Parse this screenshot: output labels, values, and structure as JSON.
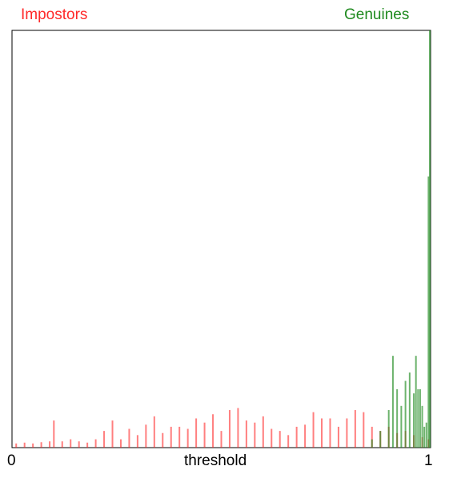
{
  "chart_data": {
    "type": "bar",
    "title": "",
    "xlabel": "threshold",
    "ylabel": "",
    "xlim": [
      0,
      1
    ],
    "ylim": [
      0,
      100
    ],
    "x_ticks": [
      "0",
      "1"
    ],
    "legend_placement": "top",
    "grid": false,
    "series": [
      {
        "name": "Impostors",
        "color": "#ff2a2a",
        "opacity": 0.6,
        "x": [
          0.01,
          0.03,
          0.05,
          0.07,
          0.09,
          0.1,
          0.12,
          0.14,
          0.16,
          0.18,
          0.2,
          0.22,
          0.24,
          0.26,
          0.28,
          0.3,
          0.32,
          0.34,
          0.36,
          0.38,
          0.4,
          0.42,
          0.44,
          0.46,
          0.48,
          0.5,
          0.52,
          0.54,
          0.56,
          0.58,
          0.6,
          0.62,
          0.64,
          0.66,
          0.68,
          0.7,
          0.72,
          0.74,
          0.76,
          0.78,
          0.8,
          0.82,
          0.84,
          0.86,
          0.88,
          0.9,
          0.92,
          0.94,
          0.96,
          0.98,
          0.995
        ],
        "values": [
          1.0,
          1.2,
          1.0,
          1.3,
          1.5,
          6.5,
          1.5,
          2.0,
          1.5,
          1.2,
          2.0,
          4.0,
          6.5,
          2.0,
          4.5,
          3.0,
          5.5,
          7.5,
          3.5,
          5.0,
          5.0,
          4.5,
          7.0,
          6.0,
          8.0,
          4.0,
          9.0,
          9.5,
          6.5,
          6.0,
          7.5,
          4.5,
          4.0,
          3.0,
          5.0,
          5.5,
          8.5,
          7.0,
          7.0,
          5.0,
          7.0,
          9.0,
          8.5,
          5.0,
          4.0,
          5.0,
          3.5,
          4.0,
          3.0,
          2.5,
          2.0
        ]
      },
      {
        "name": "Genuines",
        "color": "#1f8a1f",
        "opacity": 0.65,
        "x": [
          0.86,
          0.88,
          0.9,
          0.91,
          0.92,
          0.93,
          0.94,
          0.95,
          0.96,
          0.965,
          0.97,
          0.975,
          0.98,
          0.985,
          0.99,
          0.995,
          1.0
        ],
        "values": [
          2,
          4,
          9,
          22,
          14,
          10,
          16,
          18,
          13,
          22,
          14,
          14,
          10,
          5,
          6,
          65,
          100
        ]
      }
    ]
  }
}
